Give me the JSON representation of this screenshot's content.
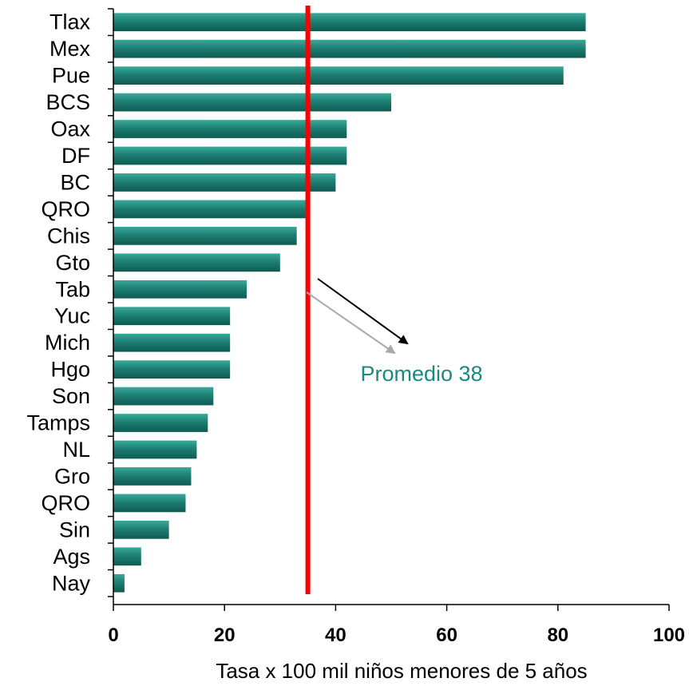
{
  "chart_data": {
    "type": "bar",
    "orientation": "horizontal",
    "categories": [
      "Tlax",
      "Mex",
      "Pue",
      "BCS",
      "Oax",
      "DF",
      "BC",
      "QRO",
      "Chis",
      "Gto",
      "Tab",
      "Yuc",
      "Mich",
      "Hgo",
      "Son",
      "Tamps",
      "NL",
      "Gro",
      "QRO",
      "Sin",
      "Ags",
      "Nay"
    ],
    "values": [
      85,
      85,
      81,
      50,
      42,
      42,
      40,
      35,
      33,
      30,
      24,
      21,
      21,
      21,
      18,
      17,
      15,
      14,
      13,
      10,
      5,
      2
    ],
    "xlabel": "Tasa x 100 mil niños menores de 5 años",
    "ylabel": "",
    "xlim": [
      0,
      100
    ],
    "xticks": [
      "0",
      "20",
      "40",
      "60",
      "80",
      "100"
    ],
    "reference_line": {
      "value": 35,
      "color": "#ff0000"
    },
    "annotation": {
      "text": "Promedio 38",
      "color": "#1a8a80"
    },
    "bar_color": "#1d7f73",
    "grid": false
  }
}
